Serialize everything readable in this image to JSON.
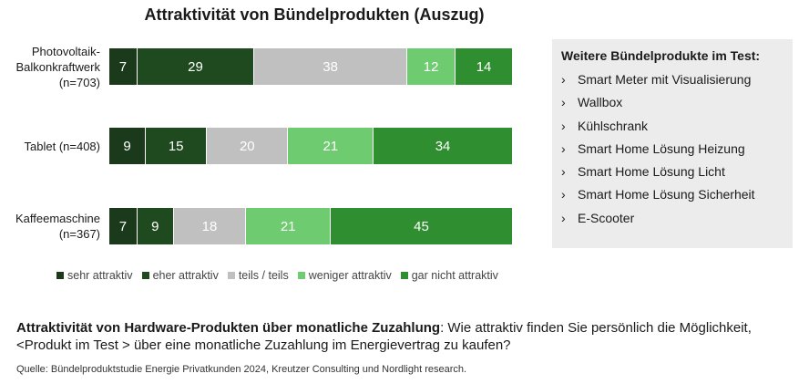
{
  "chart_data": {
    "type": "bar",
    "stacked": true,
    "orientation": "horizontal",
    "title": "Attraktivität von Bündelprodukten (Auszug)",
    "categories": [
      "Photovoltaik-Balkonkraftwerk (n=703)",
      "Tablet (n=408)",
      "Kaffeemaschine (n=367)"
    ],
    "category_lines": [
      [
        "Photovoltaik-",
        "Balkonkraftwerk",
        "(n=703)"
      ],
      [
        "Tablet (n=408)"
      ],
      [
        "Kaffeemaschine",
        "(n=367)"
      ]
    ],
    "series": [
      {
        "name": "sehr attraktiv",
        "color": "#1b3a1b",
        "values": [
          7,
          9,
          7
        ]
      },
      {
        "name": "eher attraktiv",
        "color": "#1f4a1f",
        "values": [
          29,
          15,
          9
        ]
      },
      {
        "name": "teils / teils",
        "color": "#c0c0c0",
        "values": [
          38,
          20,
          18
        ]
      },
      {
        "name": "weniger attraktiv",
        "color": "#6fcb6f",
        "values": [
          12,
          21,
          21
        ]
      },
      {
        "name": "gar nicht attraktiv",
        "color": "#2f8f30",
        "values": [
          14,
          34,
          45
        ]
      }
    ],
    "legend": "bottom"
  },
  "panel": {
    "title": "Weitere Bündelprodukte im Test:",
    "bullet": "›",
    "items": [
      "Smart Meter mit Visualisierung",
      "Wallbox",
      "Kühlschrank",
      "Smart Home Lösung Heizung",
      "Smart Home Lösung Licht",
      "Smart Home Lösung Sicherheit",
      "E-Scooter"
    ]
  },
  "question": {
    "bold": "Attraktivität von Hardware-Produkten über monatliche Zuzahlung",
    "text": ": Wie attraktiv finden Sie persönlich die Möglichkeit, <Produkt im Test > über eine monatliche Zuzahlung im Energievertrag zu kaufen?"
  },
  "source": "Quelle: Bündelproduktstudie Energie Privatkunden 2024, Kreutzer Consulting und Nordlight research."
}
